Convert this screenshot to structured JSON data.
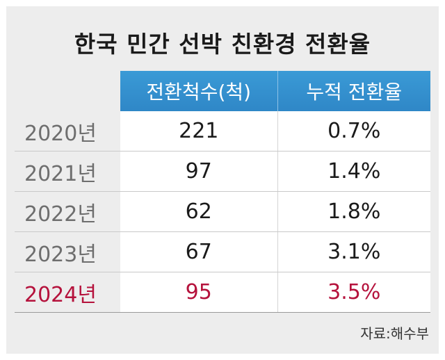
{
  "title": "한국 민간 선박 친환경 전환율",
  "source": "자료:해수부",
  "accent_color": "#3391d0",
  "highlight_color": "#b5123c",
  "chart_data": {
    "type": "table",
    "title": "한국 민간 선박 친환경 전환율",
    "columns": [
      "",
      "전환척수(척)",
      "누적 전환율"
    ],
    "rows": [
      {
        "year": "2020년",
        "ships": "221",
        "rate": "0.7%"
      },
      {
        "year": "2021년",
        "ships": "97",
        "rate": "1.4%"
      },
      {
        "year": "2022년",
        "ships": "62",
        "rate": "1.8%"
      },
      {
        "year": "2023년",
        "ships": "67",
        "rate": "3.1%"
      },
      {
        "year": "2024년",
        "ships": "95",
        "rate": "3.5%"
      }
    ],
    "highlighted_row": "2024년"
  }
}
